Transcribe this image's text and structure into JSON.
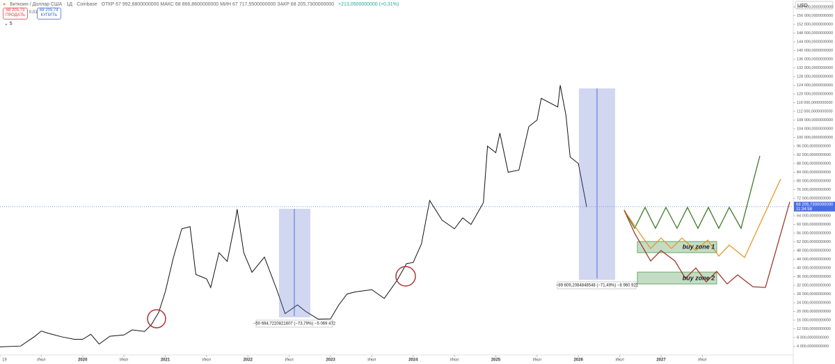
{
  "header": {
    "symbol": "Биткоин / Доллар США · 1Д · Coinbase",
    "ohlc": "ОТКР 67 992,6800000000 МАКС 68 866,8600000000 МИН 67 717,5500000000 ЗАКР 68 205,7300000000",
    "change": "+213,0500000000 (+0,31%)",
    "sell_price": "68 205,73",
    "sell_label": "ПРОДАТЬ",
    "spread": "0,01",
    "buy_price": "68 205,74",
    "buy_label": "КУПИТЬ",
    "indicators": "⌄ 5"
  },
  "chart_data": {
    "type": "line",
    "color": "#111",
    "x": [
      2019.0,
      2019.25,
      2019.42,
      2019.5,
      2019.58,
      2019.75,
      2019.9,
      2020.0,
      2020.1,
      2020.2,
      2020.33,
      2020.5,
      2020.6,
      2020.75,
      2020.83,
      2020.92,
      2021.0,
      2021.1,
      2021.2,
      2021.3,
      2021.37,
      2021.5,
      2021.55,
      2021.65,
      2021.75,
      2021.85,
      2021.87,
      2021.95,
      2022.05,
      2022.2,
      2022.35,
      2022.45,
      2022.6,
      2022.7,
      2022.85,
      2023.0,
      2023.1,
      2023.2,
      2023.3,
      2023.5,
      2023.65,
      2023.8,
      2023.92,
      2024.0,
      2024.1,
      2024.2,
      2024.35,
      2024.5,
      2024.6,
      2024.7,
      2024.85,
      2024.9,
      2025.0,
      2025.05,
      2025.15,
      2025.28,
      2025.4,
      2025.5,
      2025.55,
      2025.75,
      2025.78,
      2025.85,
      2025.9,
      2026.0,
      2026.05,
      2026.1
    ],
    "values": [
      3700,
      4100,
      8500,
      11000,
      10000,
      8300,
      7200,
      7200,
      9500,
      5000,
      8600,
      9200,
      11500,
      10800,
      13800,
      19500,
      29000,
      45000,
      58000,
      59000,
      37000,
      35000,
      31000,
      47000,
      43000,
      62000,
      67000,
      47000,
      38000,
      45000,
      30000,
      19000,
      23000,
      20000,
      16500,
      16600,
      23000,
      28000,
      29000,
      30000,
      26000,
      34000,
      42000,
      42500,
      51000,
      71000,
      62000,
      58000,
      63000,
      60000,
      70000,
      96000,
      93000,
      102000,
      84000,
      85000,
      105000,
      108000,
      118000,
      114000,
      124000,
      110000,
      91000,
      88000,
      78000,
      68000
    ],
    "xlim": [
      2019,
      2028.6
    ],
    "ylim": [
      0,
      163200
    ],
    "xticks": [
      {
        "value": 2019,
        "label": "19"
      },
      {
        "value": 2019.5,
        "label": "Июл"
      },
      2020,
      {
        "value": 2020.5,
        "label": "Июл"
      },
      2021,
      {
        "value": 2021.5,
        "label": "Июл"
      },
      2022,
      {
        "value": 2022.5,
        "label": "Июл"
      },
      2023,
      {
        "value": 2023.5,
        "label": "Июл"
      },
      2024,
      {
        "value": 2024.5,
        "label": "Июл"
      },
      2025,
      {
        "value": 2025.5,
        "label": "Июл"
      },
      2026,
      {
        "value": 2026.5,
        "label": "Июл"
      },
      2027,
      {
        "value": 2027.5,
        "label": "Июл"
      }
    ],
    "yticks": [
      {
        "value": 4000,
        "label": "4 000,0000000000"
      },
      {
        "value": 8000,
        "label": "8 000,0000000000"
      },
      {
        "value": 12000,
        "label": "12 000,0000000000"
      },
      {
        "value": 16000,
        "label": "16 000,0000000000"
      },
      {
        "value": 20000,
        "label": "20 000,0000000000"
      },
      {
        "value": 24000,
        "label": "24 000,0000000000"
      },
      {
        "value": 28000,
        "label": "28 000,0000000000"
      },
      {
        "value": 32000,
        "label": "32 000,0000000000"
      },
      {
        "value": 36000,
        "label": "36 000,0000000000"
      },
      {
        "value": 40000,
        "label": "40 000,0000000000"
      },
      {
        "value": 44000,
        "label": "44 000,0000000000"
      },
      {
        "value": 48000,
        "label": "48 000,0000000000"
      },
      {
        "value": 52000,
        "label": "52 000,0000000000"
      },
      {
        "value": 56000,
        "label": "56 000,0000000000"
      },
      {
        "value": 60000,
        "label": "60 000,0000000000"
      },
      {
        "value": 64000,
        "label": "64 000,0000000000"
      },
      {
        "value": 72000,
        "label": "72 000,0000000000"
      },
      {
        "value": 76000,
        "label": "76 000,0000000000"
      },
      {
        "value": 80000,
        "label": "80 000,0000000000"
      },
      {
        "value": 84000,
        "label": "84 000,0000000000"
      },
      {
        "value": 88000,
        "label": "88 000,0000000000"
      },
      {
        "value": 92000,
        "label": "92 000,0000000000"
      },
      {
        "value": 96000,
        "label": "96 000,0000000000"
      },
      {
        "value": 100000,
        "label": "100 000,0000000000"
      },
      {
        "value": 104000,
        "label": "104 000,0000000000"
      },
      {
        "value": 108000,
        "label": "108 000,0000000000"
      },
      {
        "value": 112000,
        "label": "112 000,0000000000"
      },
      {
        "value": 116000,
        "label": "116 000,0000000000"
      },
      {
        "value": 120000,
        "label": "120 000,0000000000"
      },
      {
        "value": 124000,
        "label": "124 000,0000000000"
      },
      {
        "value": 128000,
        "label": "128 000,0000000000"
      },
      {
        "value": 132000,
        "label": "132 000,0000000000"
      },
      {
        "value": 136000,
        "label": "136 000,0000000000"
      },
      {
        "value": 140000,
        "label": "140 000,0000000000"
      },
      {
        "value": 144000,
        "label": "144 000,0000000000"
      },
      {
        "value": 148000,
        "label": "148 000,0000000000"
      },
      {
        "value": 152000,
        "label": "152 000,0000000000"
      },
      {
        "value": 156000,
        "label": "156 000,0000000000"
      },
      {
        "value": 160000,
        "label": "160 000,0000000000"
      }
    ],
    "last_price": {
      "value": 68205.73,
      "label": "68 205,7300000000"
    },
    "countdown": "11:34:58",
    "measures": [
      "−50 694,7220821607 (−73,79%) −5 069 472",
      "−89 609,2084848548 (−71,49%) −8 960 921"
    ],
    "zone_labels": [
      "buy zone 1",
      "buy zone 2"
    ],
    "currency": "USD"
  }
}
